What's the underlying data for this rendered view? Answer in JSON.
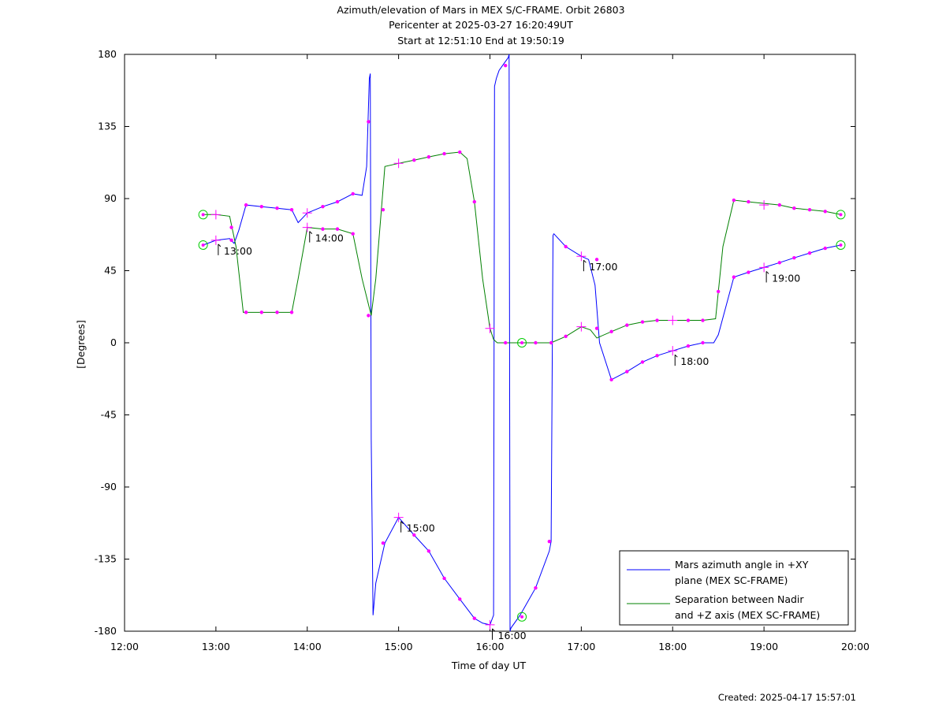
{
  "chart_data": {
    "type": "line",
    "title": [
      "Azimuth/elevation of Mars in MEX S/C-FRAME.  Orbit 26803",
      "Pericenter at 2025-03-27 16:20:49UT",
      "Start at 12:51:10 End at 19:50:19"
    ],
    "xlabel": "Time of day UT",
    "ylabel": "[Degrees]",
    "xlim": [
      12.0,
      20.0
    ],
    "ylim": [
      -180,
      180
    ],
    "xticks": [
      12,
      13,
      14,
      15,
      16,
      17,
      18,
      19,
      20
    ],
    "xtick_labels": [
      "12:00",
      "13:00",
      "14:00",
      "15:00",
      "16:00",
      "17:00",
      "18:00",
      "19:00",
      "20:00"
    ],
    "yticks": [
      180,
      135,
      90,
      45,
      0,
      -45,
      -90,
      -135,
      -180
    ],
    "ytick_labels": [
      "180",
      "135",
      "90",
      "45",
      "0",
      "-45",
      "-90",
      "-135",
      "-180"
    ],
    "grid": false,
    "legend_position": "bottom-right",
    "series": [
      {
        "name": "Mars azimuth angle in +XY plane (MEX SC-FRAME)",
        "legend_lines": [
          "Mars azimuth angle in +XY",
          "plane (MEX SC-FRAME)"
        ],
        "color": "#0000ff",
        "x": [
          12.86,
          13.0,
          13.15,
          13.2,
          13.25,
          13.33,
          13.5,
          13.67,
          13.83,
          13.9,
          14.0,
          14.17,
          14.33,
          14.5,
          14.6,
          14.65,
          14.68,
          14.69,
          14.7,
          14.72,
          14.75,
          14.85,
          15.0,
          15.17,
          15.33,
          15.5,
          15.67,
          15.83,
          15.92,
          16.0,
          16.04,
          16.05,
          16.07,
          16.1,
          16.15,
          16.2,
          16.21,
          16.22,
          16.23,
          16.33,
          16.5,
          16.65,
          16.67,
          16.69,
          16.7,
          16.83,
          17.0,
          17.08,
          17.15,
          17.2,
          17.33,
          17.5,
          17.67,
          17.83,
          18.0,
          18.17,
          18.33,
          18.45,
          18.5,
          18.67,
          18.83,
          19.0,
          19.17,
          19.33,
          19.5,
          19.67,
          19.84
        ],
        "y": [
          61,
          64,
          65,
          62,
          70,
          86,
          85,
          84,
          83,
          75,
          81,
          85,
          88,
          93,
          92,
          110,
          165,
          168,
          -60,
          -170,
          -150,
          -125,
          -109,
          -120,
          -130,
          -147,
          -160,
          -172,
          -175,
          -176,
          -170,
          160,
          165,
          170,
          174,
          178,
          180,
          -180,
          -178,
          -170,
          -153,
          -130,
          -124,
          67,
          68,
          60,
          54,
          52,
          36,
          0,
          -23,
          -18,
          -12,
          -8,
          -5,
          -2,
          0,
          0,
          5,
          41,
          44,
          47,
          50,
          53,
          56,
          59,
          61
        ]
      },
      {
        "name": "Separation between Nadir and +Z axis (MEX SC-FRAME)",
        "legend_lines": [
          "Separation between Nadir",
          "and +Z axis (MEX SC-FRAME)"
        ],
        "color": "#008000",
        "x": [
          12.86,
          13.0,
          13.15,
          13.22,
          13.3,
          13.5,
          13.67,
          13.83,
          13.9,
          14.0,
          14.17,
          14.33,
          14.5,
          14.6,
          14.7,
          14.75,
          14.85,
          15.0,
          15.17,
          15.33,
          15.5,
          15.67,
          15.75,
          15.83,
          15.92,
          16.0,
          16.04,
          16.08,
          16.2,
          16.33,
          16.5,
          16.67,
          16.83,
          17.0,
          17.1,
          17.17,
          17.33,
          17.5,
          17.67,
          17.83,
          18.0,
          18.17,
          18.33,
          18.47,
          18.55,
          18.67,
          18.83,
          19.0,
          19.17,
          19.33,
          19.5,
          19.67,
          19.84
        ],
        "y": [
          80,
          80,
          79,
          60,
          19,
          19,
          19,
          19,
          40,
          72,
          71,
          71,
          68,
          40,
          17,
          40,
          110,
          112,
          114,
          116,
          118,
          119,
          115,
          88,
          40,
          9,
          2,
          0,
          0,
          0,
          0,
          0,
          4,
          10,
          8,
          3,
          7,
          11,
          13,
          14,
          14,
          14,
          14,
          15,
          60,
          89,
          88,
          87,
          86,
          84,
          83,
          82,
          80
        ]
      }
    ],
    "hour_markers": [
      {
        "series": 0,
        "x": 13.0,
        "y": 64,
        "label": "13:00"
      },
      {
        "series": 1,
        "x": 14.0,
        "y": 72,
        "label": "14:00"
      },
      {
        "series": 0,
        "x": 15.0,
        "y": -109,
        "label": "15:00"
      },
      {
        "series": 0,
        "x": 16.0,
        "y": -176,
        "label": "16:00"
      },
      {
        "series": 0,
        "x": 17.0,
        "y": 54,
        "label": "17:00"
      },
      {
        "series": 0,
        "x": 18.0,
        "y": -5,
        "label": "18:00"
      },
      {
        "series": 0,
        "x": 19.0,
        "y": 47,
        "label": "19:00"
      }
    ],
    "plus_markers": [
      {
        "x": 13.0,
        "y": 64
      },
      {
        "x": 13.0,
        "y": 80
      },
      {
        "x": 14.0,
        "y": 81
      },
      {
        "x": 14.0,
        "y": 72
      },
      {
        "x": 15.0,
        "y": 112
      },
      {
        "x": 15.0,
        "y": -109
      },
      {
        "x": 16.0,
        "y": 9
      },
      {
        "x": 16.0,
        "y": -176
      },
      {
        "x": 17.0,
        "y": 54
      },
      {
        "x": 17.0,
        "y": 10
      },
      {
        "x": 18.0,
        "y": 14
      },
      {
        "x": 18.0,
        "y": -5
      },
      {
        "x": 19.0,
        "y": 47
      },
      {
        "x": 19.0,
        "y": 86
      }
    ],
    "circle_markers": [
      {
        "x": 12.86,
        "y": 61
      },
      {
        "x": 12.86,
        "y": 80
      },
      {
        "x": 16.35,
        "y": 0
      },
      {
        "x": 16.35,
        "y": -171
      },
      {
        "x": 19.84,
        "y": 61
      },
      {
        "x": 19.84,
        "y": 80
      }
    ],
    "dot_markers": [
      {
        "x": 13.17,
        "y": 72
      },
      {
        "x": 13.33,
        "y": 19
      },
      {
        "x": 13.5,
        "y": 19
      },
      {
        "x": 13.67,
        "y": 19
      },
      {
        "x": 13.83,
        "y": 19
      },
      {
        "x": 14.17,
        "y": 71
      },
      {
        "x": 14.33,
        "y": 71
      },
      {
        "x": 14.5,
        "y": 68
      },
      {
        "x": 14.67,
        "y": 17
      },
      {
        "x": 14.67,
        "y": 138
      },
      {
        "x": 14.83,
        "y": 83
      },
      {
        "x": 15.17,
        "y": 114
      },
      {
        "x": 15.33,
        "y": 116
      },
      {
        "x": 15.5,
        "y": 118
      },
      {
        "x": 15.67,
        "y": 119
      },
      {
        "x": 15.83,
        "y": 88
      },
      {
        "x": 16.17,
        "y": 0
      },
      {
        "x": 16.5,
        "y": 0
      },
      {
        "x": 16.67,
        "y": 0
      },
      {
        "x": 16.83,
        "y": 4
      },
      {
        "x": 17.17,
        "y": 9
      },
      {
        "x": 17.33,
        "y": 7
      },
      {
        "x": 17.5,
        "y": 11
      },
      {
        "x": 17.67,
        "y": 13
      },
      {
        "x": 17.83,
        "y": 14
      },
      {
        "x": 18.17,
        "y": 14
      },
      {
        "x": 18.33,
        "y": 14
      },
      {
        "x": 18.67,
        "y": 89
      },
      {
        "x": 18.83,
        "y": 88
      },
      {
        "x": 19.17,
        "y": 86
      },
      {
        "x": 19.33,
        "y": 84
      },
      {
        "x": 19.5,
        "y": 83
      },
      {
        "x": 19.67,
        "y": 82
      },
      {
        "x": 13.33,
        "y": 86
      },
      {
        "x": 13.5,
        "y": 85
      },
      {
        "x": 13.67,
        "y": 84
      },
      {
        "x": 13.83,
        "y": 83
      },
      {
        "x": 14.17,
        "y": 85
      },
      {
        "x": 14.33,
        "y": 88
      },
      {
        "x": 14.5,
        "y": 93
      },
      {
        "x": 14.83,
        "y": -125
      },
      {
        "x": 15.17,
        "y": -120
      },
      {
        "x": 15.33,
        "y": -130
      },
      {
        "x": 15.5,
        "y": -147
      },
      {
        "x": 15.67,
        "y": -160
      },
      {
        "x": 15.83,
        "y": -172
      },
      {
        "x": 16.17,
        "y": 173
      },
      {
        "x": 16.5,
        "y": -153
      },
      {
        "x": 16.65,
        "y": -124
      },
      {
        "x": 16.83,
        "y": 60
      },
      {
        "x": 17.17,
        "y": 52
      },
      {
        "x": 17.33,
        "y": -23
      },
      {
        "x": 17.5,
        "y": -18
      },
      {
        "x": 17.67,
        "y": -12
      },
      {
        "x": 17.83,
        "y": -8
      },
      {
        "x": 18.17,
        "y": -2
      },
      {
        "x": 18.33,
        "y": 0
      },
      {
        "x": 18.5,
        "y": 32
      },
      {
        "x": 18.67,
        "y": 41
      },
      {
        "x": 18.83,
        "y": 44
      },
      {
        "x": 19.17,
        "y": 50
      },
      {
        "x": 19.33,
        "y": 53
      },
      {
        "x": 19.5,
        "y": 56
      },
      {
        "x": 19.67,
        "y": 59
      },
      {
        "x": 13.17,
        "y": 64
      }
    ]
  },
  "footer": {
    "created": "Created: 2025-04-17 15:57:01"
  }
}
